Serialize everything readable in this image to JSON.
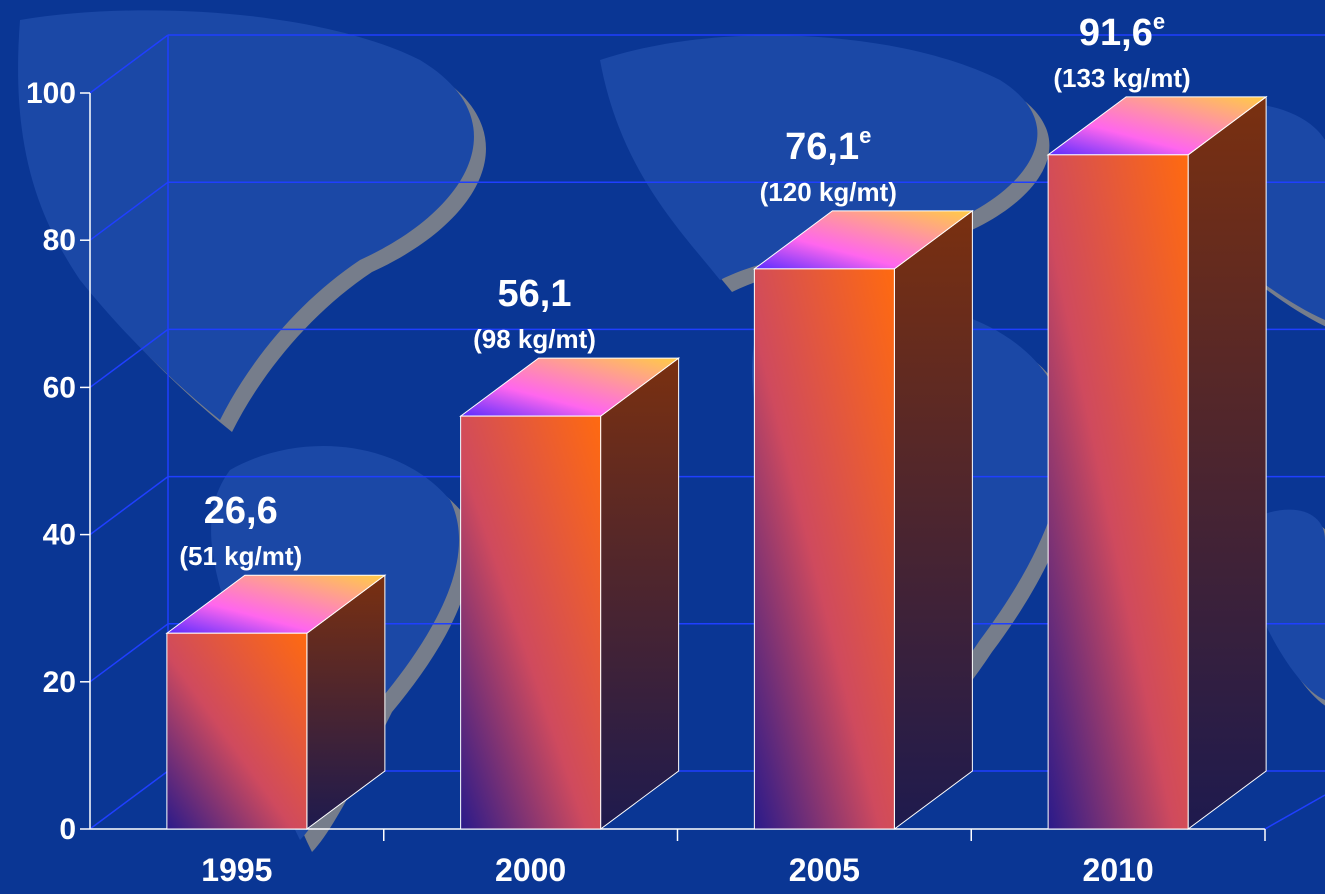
{
  "colors": {
    "background": "#0a3694",
    "grid": "#1f3fff",
    "text": "#ffffff",
    "bar_front_light": "#ff6a10",
    "bar_front_dark": "#2a1a8a",
    "bar_side": "#6a2a18",
    "bar_top": "#ff66ee"
  },
  "chart_data": {
    "type": "bar",
    "categories": [
      "1995",
      "2000",
      "2005",
      "2010"
    ],
    "values": [
      26.6,
      56.1,
      76.1,
      91.6
    ],
    "value_labels": [
      "26,6",
      "56,1",
      "76,1",
      "91,6"
    ],
    "value_superscripts": [
      "",
      "",
      "e",
      "e"
    ],
    "sub_labels": [
      "(51 kg/mt)",
      "(98 kg/mt)",
      "(120 kg/mt)",
      "(133 kg/mt)"
    ],
    "ylim": [
      0,
      100
    ],
    "yticks": [
      0,
      20,
      40,
      60,
      80,
      100
    ],
    "grid": true,
    "legend": "none",
    "style": "3d"
  }
}
